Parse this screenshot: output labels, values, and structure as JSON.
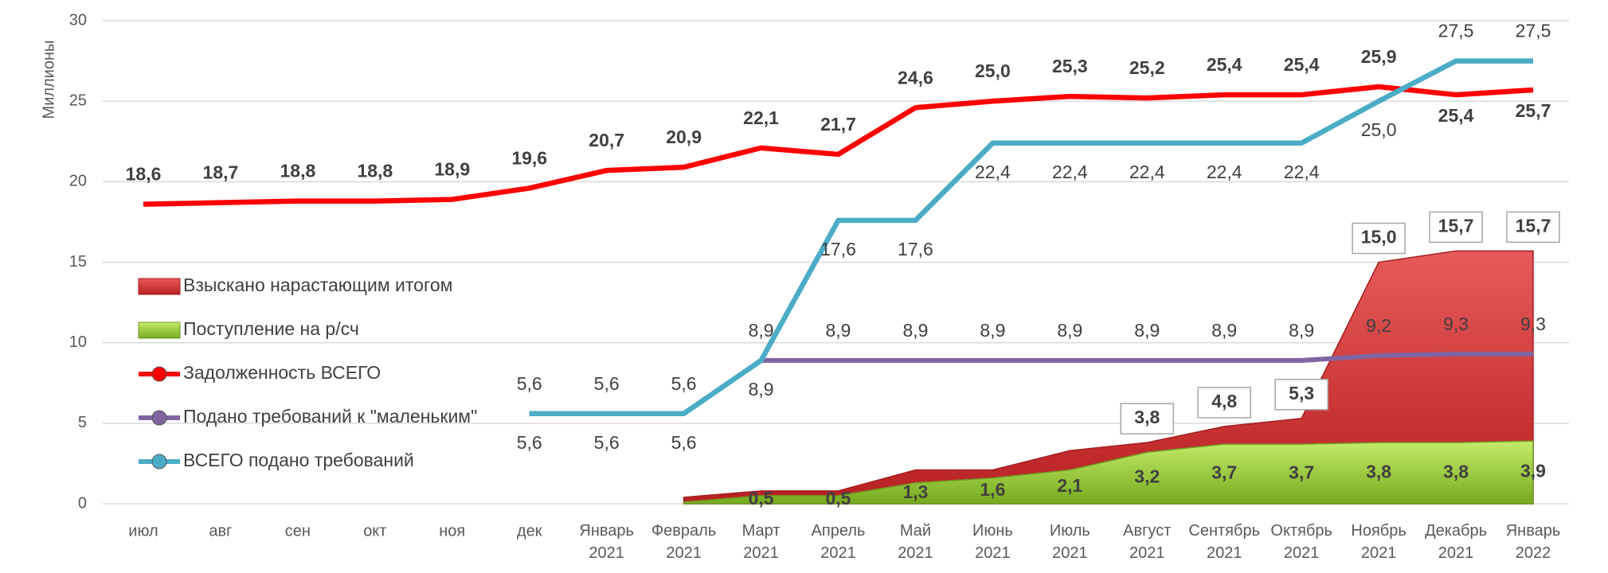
{
  "chart_data": {
    "type": "line",
    "y_label": "Миллионы",
    "categories": [
      "июл",
      "авг",
      "сен",
      "окт",
      "ноя",
      "дек",
      "Январь 2021",
      "Февраль 2021",
      "Март 2021",
      "Апрель 2021",
      "Май 2021",
      "Июнь 2021",
      "Июль 2021",
      "Август 2021",
      "Сентябрь 2021",
      "Октябрь 2021",
      "Ноябрь 2021",
      "Декабрь 2021",
      "Январь 2022"
    ],
    "ylim": [
      0,
      30
    ],
    "yticks": [
      0,
      5,
      10,
      15,
      20,
      25,
      30
    ],
    "grid": true,
    "legend": "left",
    "series": [
      {
        "name": "Взыскано нарастающим итогом",
        "type": "area",
        "color": "#d9393a",
        "values": [
          null,
          null,
          null,
          null,
          null,
          null,
          null,
          0.4,
          0.8,
          0.8,
          2.1,
          2.1,
          3.3,
          3.8,
          4.8,
          5.3,
          15.0,
          15.7,
          15.7
        ],
        "value_labels": [
          null,
          null,
          null,
          null,
          null,
          null,
          null,
          null,
          null,
          null,
          null,
          null,
          null,
          "3,8",
          "4,8",
          "5,3",
          "15,0",
          "15,7",
          "15,7"
        ]
      },
      {
        "name": "Поступление на р/сч",
        "type": "area",
        "color": "#92c83e",
        "values": [
          null,
          null,
          null,
          null,
          null,
          null,
          null,
          0.1,
          0.5,
          0.5,
          1.3,
          1.6,
          2.1,
          3.2,
          3.7,
          3.7,
          3.8,
          3.8,
          3.9
        ],
        "value_labels": [
          null,
          null,
          null,
          null,
          null,
          null,
          null,
          null,
          "0,5",
          "0,5",
          "1,3",
          "1,6",
          "2,1",
          "3,2",
          "3,7",
          "3,7",
          "3,8",
          "3,8",
          "3,9"
        ]
      },
      {
        "name": "Задолженность ВСЕГО",
        "type": "line",
        "color": "#ff0000",
        "values": [
          18.6,
          18.7,
          18.8,
          18.8,
          18.9,
          19.6,
          20.7,
          20.9,
          22.1,
          21.7,
          24.6,
          25.0,
          25.3,
          25.2,
          25.4,
          25.4,
          25.9,
          25.4,
          25.7
        ],
        "value_labels": [
          "18,6",
          "18,7",
          "18,8",
          "18,8",
          "18,9",
          "19,6",
          "20,7",
          "20,9",
          "22,1",
          "21,7",
          "24,6",
          "25,0",
          "25,3",
          "25,2",
          "25,4",
          "25,4",
          "25,9",
          "25,4",
          "25,7"
        ]
      },
      {
        "name": "Подано требований к \"маленьким\"",
        "type": "line",
        "color": "#8064a2",
        "values": [
          null,
          null,
          null,
          null,
          null,
          5.6,
          5.6,
          5.6,
          8.9,
          8.9,
          8.9,
          8.9,
          8.9,
          8.9,
          8.9,
          8.9,
          9.2,
          9.3,
          9.3
        ],
        "value_labels": [
          null,
          null,
          null,
          null,
          null,
          "5,6",
          "5,6",
          "5,6",
          "8,9",
          "8,9",
          "8,9",
          "8,9",
          "8,9",
          "8,9",
          "8,9",
          "8,9",
          "9,2",
          "9,3",
          "9,3"
        ]
      },
      {
        "name": "ВСЕГО подано требований",
        "type": "line",
        "color": "#4bacc6",
        "values": [
          null,
          null,
          null,
          null,
          null,
          5.6,
          5.6,
          5.6,
          8.9,
          17.6,
          17.6,
          22.4,
          22.4,
          22.4,
          22.4,
          22.4,
          25.0,
          27.5,
          27.5
        ],
        "value_labels": [
          null,
          null,
          null,
          null,
          null,
          "5,6",
          "5,6",
          "5,6",
          "8,9",
          "17,6",
          "17,6",
          "22,4",
          "22,4",
          "22,4",
          "22,4",
          "22,4",
          "25,0",
          "27,5",
          "27,5"
        ]
      }
    ]
  }
}
